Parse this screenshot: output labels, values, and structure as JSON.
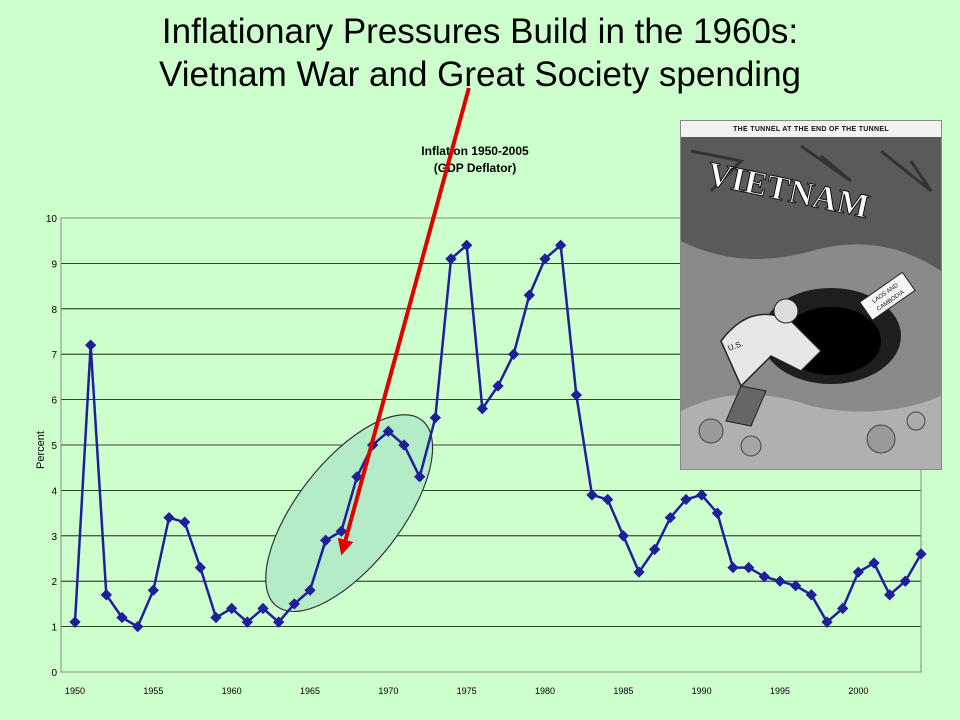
{
  "slide": {
    "title_line1": "Inflationary Pressures Build in the 1960s:",
    "title_line2": "Vietnam War and Great Society spending"
  },
  "colors": {
    "background": "#ccffcc",
    "series": "#1f1f99",
    "marker": "#1f1f99",
    "arrow": "#e00000",
    "highlight_fill": "#b3ecc6",
    "highlight_stroke": "#333333",
    "grid": "#000000"
  },
  "cartoon": {
    "caption": "THE TUNNEL AT THE END OF THE TUNNEL",
    "word": "VIETNAM",
    "sign_line1": "LAOS AND",
    "sign_line2": "CAMBODIA",
    "sleeve_label": "U.S."
  },
  "chart_data": {
    "type": "line",
    "title_line1": "Inflation 1950-2005",
    "title_line2": "(GDP Deflator)",
    "xlabel": "",
    "ylabel": "Percent",
    "ylim": [
      0,
      10
    ],
    "yticks": [
      0,
      1,
      2,
      3,
      4,
      5,
      6,
      7,
      8,
      9,
      10
    ],
    "xlim": [
      1950,
      2004
    ],
    "xticks": [
      1950,
      1955,
      1960,
      1965,
      1970,
      1975,
      1980,
      1985,
      1990,
      1995,
      2000
    ],
    "grid": true,
    "legend": "none",
    "series": [
      {
        "x": [
          1950,
          1951,
          1952,
          1953,
          1954,
          1955,
          1956,
          1957,
          1958,
          1959,
          1960,
          1961,
          1962,
          1963,
          1964,
          1965,
          1966,
          1967,
          1968,
          1969,
          1970,
          1971,
          1972,
          1973,
          1974,
          1975,
          1976,
          1977,
          1978,
          1979,
          1980,
          1981,
          1982,
          1983,
          1984,
          1985,
          1986,
          1987,
          1988,
          1989,
          1990,
          1991,
          1992,
          1993,
          1994,
          1995,
          1996,
          1997,
          1998,
          1999,
          2000,
          2001,
          2002,
          2003,
          2004
        ],
        "values": [
          1.1,
          7.2,
          1.7,
          1.2,
          1.0,
          1.8,
          3.4,
          3.3,
          2.3,
          1.2,
          1.4,
          1.1,
          1.4,
          1.1,
          1.5,
          1.8,
          2.9,
          3.1,
          4.3,
          5.0,
          5.3,
          5.0,
          4.3,
          5.6,
          9.1,
          9.4,
          5.8,
          6.3,
          7.0,
          8.3,
          9.1,
          9.4,
          6.1,
          3.9,
          3.8,
          3.0,
          2.2,
          2.7,
          3.4,
          3.8,
          3.9,
          3.5,
          2.3,
          2.3,
          2.1,
          2.0,
          1.9,
          1.7,
          1.1,
          1.4,
          2.2,
          2.4,
          1.7,
          2.0,
          2.6
        ]
      }
    ],
    "annotations": [
      {
        "type": "ellipse",
        "x_center": 1967.5,
        "y_center": 3.5,
        "x_radius": 6.5,
        "y_radius": 3.0
      },
      {
        "type": "arrow",
        "from": [
          1974.5,
          14.0
        ],
        "to": [
          1967.0,
          2.7
        ]
      }
    ]
  }
}
